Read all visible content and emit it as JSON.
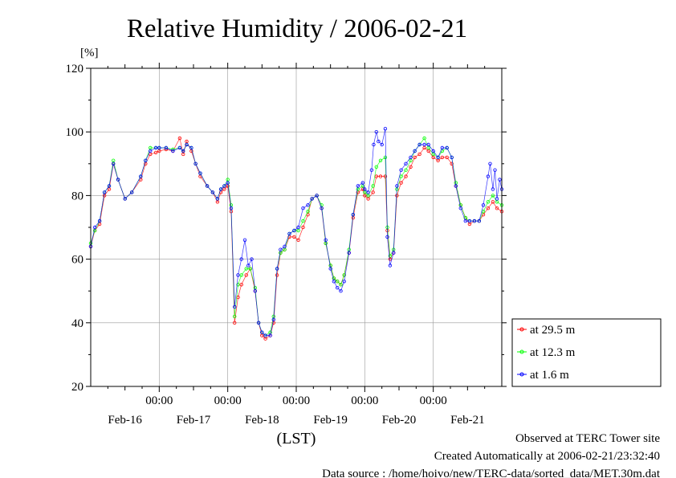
{
  "chart_data": {
    "type": "scatter",
    "title": "Relative Humidity / 2006-02-21",
    "ylabel": "[%]",
    "xlabel": "(LST)",
    "ylim": [
      20,
      120
    ],
    "yticks": [
      20,
      40,
      60,
      80,
      100,
      120
    ],
    "xlim_days": [
      0,
      6
    ],
    "time_tick_label": "00:00",
    "date_labels": [
      "Feb-16",
      "Feb-17",
      "Feb-18",
      "Feb-19",
      "Feb-20",
      "Feb-21"
    ],
    "grid": true,
    "legend_position": "right",
    "series": [
      {
        "name": "at 29.5 m",
        "color": "#ff0000",
        "points": [
          [
            0.0,
            64
          ],
          [
            0.06,
            69
          ],
          [
            0.13,
            71
          ],
          [
            0.2,
            80
          ],
          [
            0.27,
            82
          ],
          [
            0.33,
            90
          ],
          [
            0.4,
            85
          ],
          [
            0.5,
            79
          ],
          [
            0.6,
            81
          ],
          [
            0.73,
            85
          ],
          [
            0.8,
            90
          ],
          [
            0.87,
            93
          ],
          [
            0.95,
            93.5
          ],
          [
            1.0,
            94
          ],
          [
            1.1,
            94.5
          ],
          [
            1.2,
            94
          ],
          [
            1.3,
            98
          ],
          [
            1.35,
            93
          ],
          [
            1.4,
            97
          ],
          [
            1.47,
            94
          ],
          [
            1.53,
            90
          ],
          [
            1.6,
            86
          ],
          [
            1.7,
            83
          ],
          [
            1.78,
            81
          ],
          [
            1.85,
            78
          ],
          [
            1.9,
            81
          ],
          [
            1.95,
            82
          ],
          [
            2.0,
            83
          ],
          [
            2.05,
            75
          ],
          [
            2.1,
            40
          ],
          [
            2.15,
            48
          ],
          [
            2.2,
            52
          ],
          [
            2.27,
            55
          ],
          [
            2.33,
            57
          ],
          [
            2.4,
            50
          ],
          [
            2.45,
            40
          ],
          [
            2.5,
            36
          ],
          [
            2.55,
            35
          ],
          [
            2.62,
            36
          ],
          [
            2.67,
            40
          ],
          [
            2.72,
            55
          ],
          [
            2.77,
            62
          ],
          [
            2.83,
            63
          ],
          [
            2.9,
            67
          ],
          [
            2.97,
            67
          ],
          [
            3.03,
            66
          ],
          [
            3.1,
            70
          ],
          [
            3.17,
            74
          ],
          [
            3.23,
            79
          ],
          [
            3.3,
            80
          ],
          [
            3.37,
            76
          ],
          [
            3.43,
            65
          ],
          [
            3.5,
            58
          ],
          [
            3.55,
            54
          ],
          [
            3.6,
            53
          ],
          [
            3.65,
            52
          ],
          [
            3.7,
            55
          ],
          [
            3.77,
            62
          ],
          [
            3.83,
            73
          ],
          [
            3.9,
            81
          ],
          [
            3.97,
            82
          ],
          [
            4.0,
            80
          ],
          [
            4.05,
            79
          ],
          [
            4.12,
            81
          ],
          [
            4.17,
            86
          ],
          [
            4.23,
            86
          ],
          [
            4.3,
            86
          ],
          [
            4.33,
            69
          ],
          [
            4.37,
            60
          ],
          [
            4.42,
            62
          ],
          [
            4.47,
            80
          ],
          [
            4.53,
            84
          ],
          [
            4.6,
            86
          ],
          [
            4.67,
            89
          ],
          [
            4.73,
            92
          ],
          [
            4.8,
            93
          ],
          [
            4.87,
            95
          ],
          [
            4.93,
            94
          ],
          [
            5.0,
            92
          ],
          [
            5.07,
            91
          ],
          [
            5.13,
            92
          ],
          [
            5.2,
            92
          ],
          [
            5.27,
            90
          ],
          [
            5.33,
            83
          ],
          [
            5.4,
            77
          ],
          [
            5.47,
            73
          ],
          [
            5.53,
            71
          ],
          [
            5.6,
            72
          ],
          [
            5.67,
            72
          ],
          [
            5.73,
            74
          ],
          [
            5.8,
            76
          ],
          [
            5.87,
            78
          ],
          [
            5.93,
            76
          ],
          [
            6.0,
            75
          ]
        ]
      },
      {
        "name": "at 12.3 m",
        "color": "#00ff00",
        "points": [
          [
            0.0,
            65
          ],
          [
            0.06,
            69
          ],
          [
            0.13,
            72
          ],
          [
            0.2,
            81
          ],
          [
            0.27,
            83
          ],
          [
            0.33,
            91
          ],
          [
            0.4,
            85
          ],
          [
            0.5,
            79
          ],
          [
            0.6,
            81
          ],
          [
            0.73,
            86
          ],
          [
            0.8,
            91
          ],
          [
            0.87,
            95
          ],
          [
            0.95,
            95
          ],
          [
            1.0,
            95
          ],
          [
            1.1,
            95
          ],
          [
            1.2,
            94.5
          ],
          [
            1.3,
            95
          ],
          [
            1.35,
            94
          ],
          [
            1.4,
            96
          ],
          [
            1.47,
            95
          ],
          [
            1.53,
            90
          ],
          [
            1.6,
            87
          ],
          [
            1.7,
            83
          ],
          [
            1.78,
            81
          ],
          [
            1.85,
            79
          ],
          [
            1.9,
            82
          ],
          [
            1.95,
            83
          ],
          [
            2.0,
            85
          ],
          [
            2.05,
            77
          ],
          [
            2.1,
            42
          ],
          [
            2.15,
            52
          ],
          [
            2.2,
            55
          ],
          [
            2.27,
            57
          ],
          [
            2.33,
            57
          ],
          [
            2.4,
            51
          ],
          [
            2.45,
            40
          ],
          [
            2.5,
            37
          ],
          [
            2.55,
            36
          ],
          [
            2.62,
            37
          ],
          [
            2.67,
            42
          ],
          [
            2.72,
            57
          ],
          [
            2.77,
            62
          ],
          [
            2.83,
            63
          ],
          [
            2.9,
            68
          ],
          [
            2.97,
            69
          ],
          [
            3.03,
            69
          ],
          [
            3.1,
            72
          ],
          [
            3.17,
            75
          ],
          [
            3.23,
            79
          ],
          [
            3.3,
            80
          ],
          [
            3.37,
            77
          ],
          [
            3.43,
            65
          ],
          [
            3.5,
            58
          ],
          [
            3.55,
            54
          ],
          [
            3.6,
            53
          ],
          [
            3.65,
            52
          ],
          [
            3.7,
            55
          ],
          [
            3.77,
            63
          ],
          [
            3.83,
            74
          ],
          [
            3.9,
            82
          ],
          [
            3.97,
            83
          ],
          [
            4.0,
            81
          ],
          [
            4.05,
            80
          ],
          [
            4.12,
            83
          ],
          [
            4.17,
            89
          ],
          [
            4.23,
            91
          ],
          [
            4.3,
            92
          ],
          [
            4.33,
            70
          ],
          [
            4.37,
            61
          ],
          [
            4.42,
            63
          ],
          [
            4.47,
            82
          ],
          [
            4.53,
            86
          ],
          [
            4.6,
            88
          ],
          [
            4.67,
            91
          ],
          [
            4.73,
            94
          ],
          [
            4.8,
            96
          ],
          [
            4.87,
            98
          ],
          [
            4.93,
            95
          ],
          [
            5.0,
            93
          ],
          [
            5.07,
            92
          ],
          [
            5.13,
            94
          ],
          [
            5.2,
            95
          ],
          [
            5.27,
            92
          ],
          [
            5.33,
            84
          ],
          [
            5.4,
            77
          ],
          [
            5.47,
            73
          ],
          [
            5.53,
            72
          ],
          [
            5.6,
            72
          ],
          [
            5.67,
            72
          ],
          [
            5.73,
            75
          ],
          [
            5.8,
            78
          ],
          [
            5.87,
            80
          ],
          [
            5.93,
            78
          ],
          [
            6.0,
            77
          ]
        ]
      },
      {
        "name": "at 1.6 m",
        "color": "#0000ff",
        "points": [
          [
            0.0,
            64
          ],
          [
            0.06,
            70
          ],
          [
            0.13,
            72
          ],
          [
            0.2,
            81
          ],
          [
            0.27,
            83
          ],
          [
            0.33,
            90
          ],
          [
            0.4,
            85
          ],
          [
            0.5,
            79
          ],
          [
            0.6,
            81
          ],
          [
            0.73,
            86
          ],
          [
            0.8,
            91
          ],
          [
            0.87,
            94
          ],
          [
            0.95,
            95
          ],
          [
            1.0,
            95
          ],
          [
            1.1,
            95
          ],
          [
            1.2,
            94
          ],
          [
            1.3,
            95
          ],
          [
            1.35,
            94
          ],
          [
            1.4,
            96
          ],
          [
            1.47,
            95
          ],
          [
            1.53,
            90
          ],
          [
            1.6,
            87
          ],
          [
            1.7,
            83
          ],
          [
            1.78,
            81
          ],
          [
            1.85,
            79
          ],
          [
            1.9,
            82
          ],
          [
            1.95,
            83
          ],
          [
            2.0,
            84
          ],
          [
            2.05,
            76
          ],
          [
            2.1,
            45
          ],
          [
            2.15,
            55
          ],
          [
            2.2,
            60
          ],
          [
            2.25,
            66
          ],
          [
            2.3,
            58
          ],
          [
            2.35,
            60
          ],
          [
            2.4,
            50
          ],
          [
            2.45,
            40
          ],
          [
            2.5,
            37
          ],
          [
            2.55,
            36
          ],
          [
            2.62,
            36
          ],
          [
            2.67,
            41
          ],
          [
            2.72,
            57
          ],
          [
            2.77,
            63
          ],
          [
            2.83,
            64
          ],
          [
            2.9,
            68
          ],
          [
            2.97,
            69
          ],
          [
            3.03,
            70
          ],
          [
            3.1,
            76
          ],
          [
            3.17,
            77
          ],
          [
            3.23,
            79
          ],
          [
            3.3,
            80
          ],
          [
            3.37,
            76
          ],
          [
            3.43,
            66
          ],
          [
            3.5,
            57
          ],
          [
            3.55,
            53
          ],
          [
            3.6,
            51
          ],
          [
            3.65,
            50
          ],
          [
            3.7,
            53
          ],
          [
            3.77,
            62
          ],
          [
            3.83,
            74
          ],
          [
            3.9,
            83
          ],
          [
            3.97,
            84
          ],
          [
            4.0,
            82
          ],
          [
            4.05,
            81
          ],
          [
            4.1,
            88
          ],
          [
            4.13,
            96
          ],
          [
            4.17,
            100
          ],
          [
            4.2,
            97
          ],
          [
            4.25,
            96
          ],
          [
            4.3,
            101
          ],
          [
            4.33,
            67
          ],
          [
            4.37,
            58
          ],
          [
            4.42,
            62
          ],
          [
            4.47,
            83
          ],
          [
            4.53,
            88
          ],
          [
            4.6,
            90
          ],
          [
            4.67,
            92
          ],
          [
            4.73,
            94
          ],
          [
            4.8,
            96
          ],
          [
            4.87,
            96
          ],
          [
            4.93,
            96
          ],
          [
            5.0,
            94
          ],
          [
            5.07,
            92
          ],
          [
            5.13,
            95
          ],
          [
            5.2,
            95
          ],
          [
            5.27,
            92
          ],
          [
            5.33,
            83
          ],
          [
            5.4,
            76
          ],
          [
            5.47,
            72
          ],
          [
            5.53,
            72
          ],
          [
            5.6,
            72
          ],
          [
            5.67,
            72
          ],
          [
            5.73,
            77
          ],
          [
            5.8,
            86
          ],
          [
            5.83,
            90
          ],
          [
            5.87,
            82
          ],
          [
            5.9,
            88
          ],
          [
            5.93,
            79
          ],
          [
            5.97,
            85
          ],
          [
            6.0,
            82
          ]
        ]
      }
    ]
  },
  "footer": {
    "line1": "Observed at TERC Tower site",
    "line2": "Created Automatically at 2006-02-21/23:32:40",
    "line3": "Data source : /home/hoivo/new/TERC-data/sorted_data/MET.30m.dat"
  }
}
